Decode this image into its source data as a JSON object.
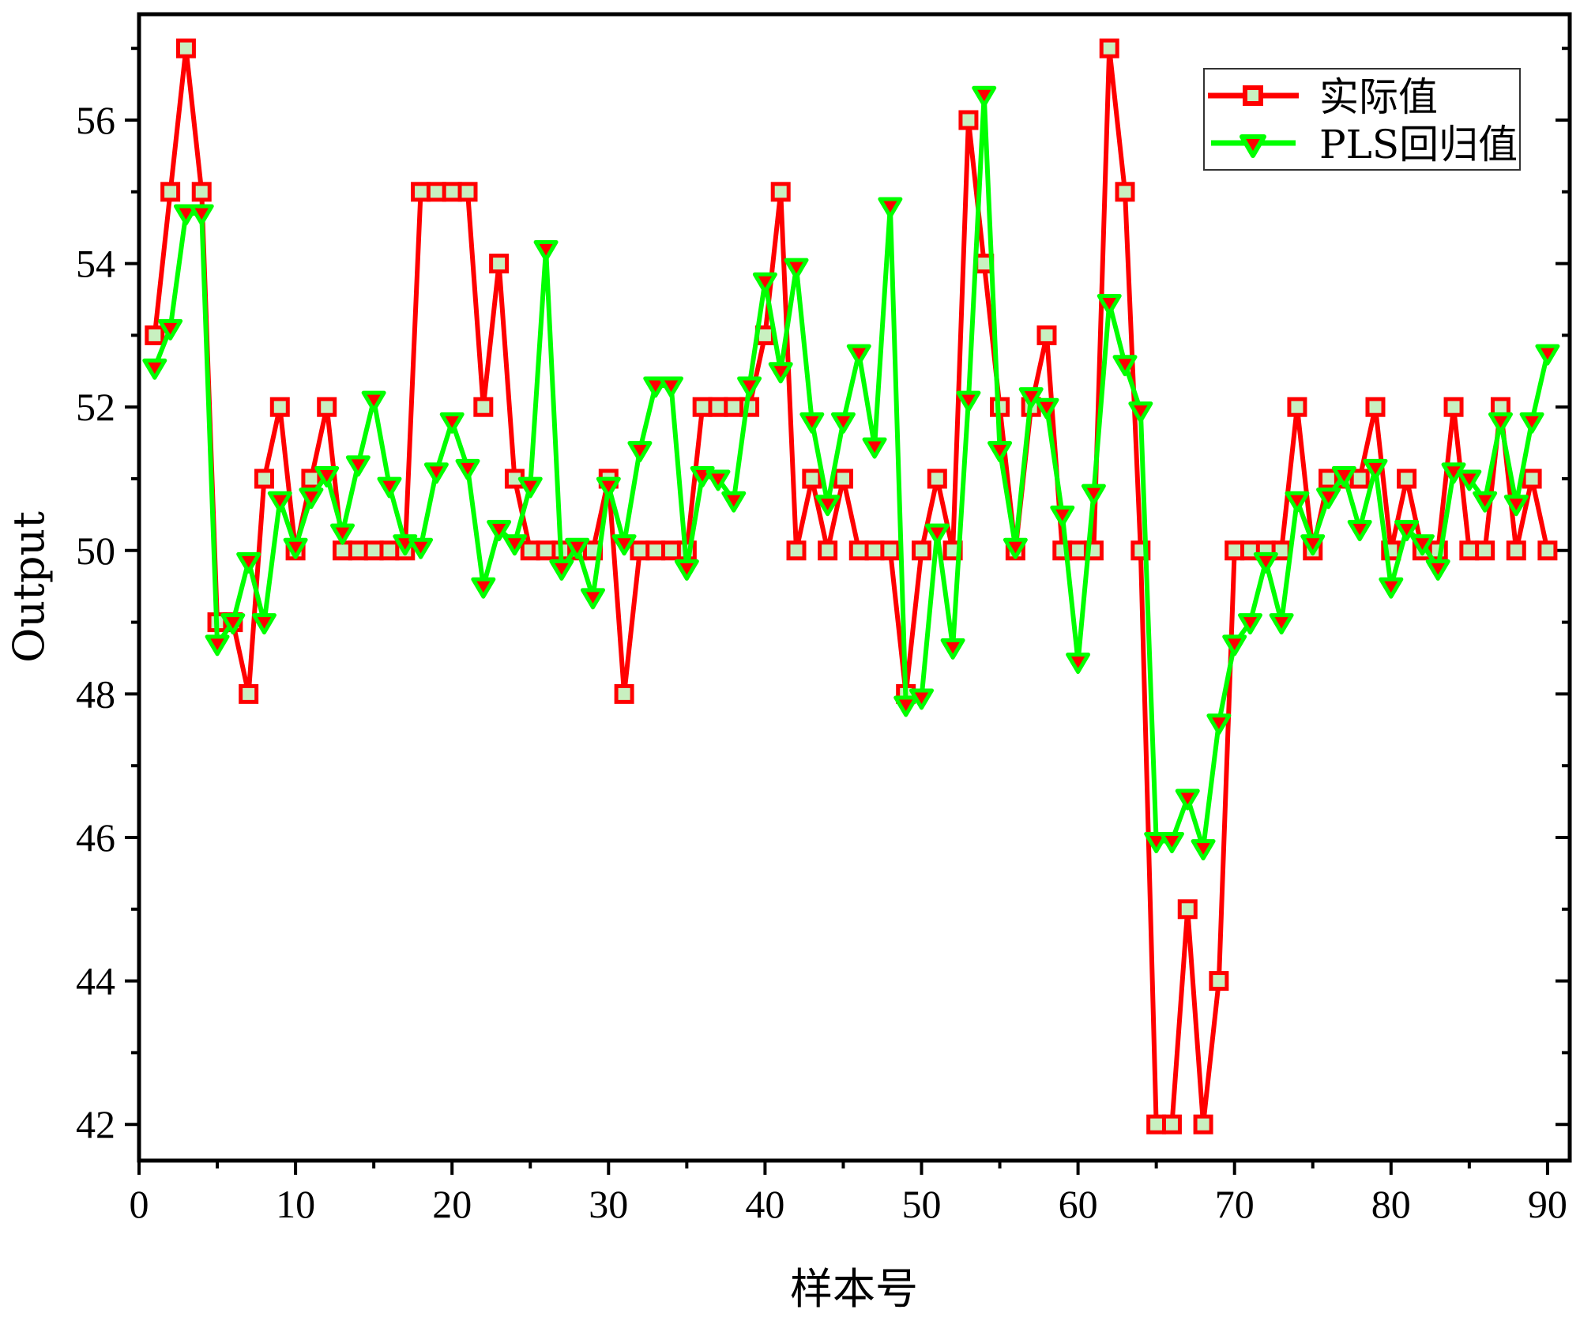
{
  "chart_data": {
    "type": "line",
    "title": "",
    "xlabel": "样本号",
    "ylabel": "Output",
    "xlim": [
      0,
      91
    ],
    "ylim": [
      41.5,
      57.5
    ],
    "xticks": [
      0,
      10,
      20,
      30,
      40,
      50,
      60,
      70,
      80,
      90
    ],
    "yticks": [
      42,
      44,
      46,
      48,
      50,
      52,
      54,
      56
    ],
    "grid": false,
    "legend_position": "top-right",
    "x": [
      1,
      2,
      3,
      4,
      5,
      6,
      7,
      8,
      9,
      10,
      11,
      12,
      13,
      14,
      15,
      16,
      17,
      18,
      19,
      20,
      21,
      22,
      23,
      24,
      25,
      26,
      27,
      28,
      29,
      30,
      31,
      32,
      33,
      34,
      35,
      36,
      37,
      38,
      39,
      40,
      41,
      42,
      43,
      44,
      45,
      46,
      47,
      48,
      49,
      50,
      51,
      52,
      53,
      54,
      55,
      56,
      57,
      58,
      59,
      60,
      61,
      62,
      63,
      64,
      65,
      66,
      67,
      68,
      69,
      70,
      71,
      72,
      73,
      74,
      75,
      76,
      77,
      78,
      79,
      80,
      81,
      82,
      83,
      84,
      85,
      86,
      87,
      88,
      89,
      90
    ],
    "series": [
      {
        "name": "实际值",
        "color": "#ff0000",
        "marker": "square",
        "marker_fill": "#c8f0c0",
        "values": [
          53,
          55,
          57,
          55,
          49,
          49,
          48,
          51,
          52,
          50,
          51,
          52,
          50,
          50,
          50,
          50,
          50,
          55,
          55,
          55,
          55,
          52,
          54,
          51,
          50,
          50,
          50,
          50,
          50,
          51,
          48,
          50,
          50,
          50,
          50,
          52,
          52,
          52,
          52,
          53,
          55,
          50,
          51,
          50,
          51,
          50,
          50,
          50,
          48,
          50,
          51,
          50,
          56,
          54,
          52,
          50,
          52,
          53,
          50,
          50,
          50,
          57,
          55,
          50,
          42,
          42,
          45,
          42,
          44,
          50,
          50,
          50,
          50,
          52,
          50,
          51,
          51,
          51,
          52,
          50,
          51,
          50,
          50,
          52,
          50,
          50,
          52,
          50,
          51,
          50
        ]
      },
      {
        "name": "PLS回归值",
        "color": "#00ff00",
        "marker": "triangle-down",
        "marker_fill": "#ff0000",
        "values": [
          52.55,
          53.1,
          54.7,
          54.7,
          48.7,
          49.0,
          49.85,
          49.0,
          50.7,
          50.05,
          50.75,
          51.05,
          50.25,
          51.2,
          52.1,
          50.9,
          50.1,
          50.05,
          51.1,
          51.8,
          51.15,
          49.5,
          50.3,
          50.1,
          50.9,
          54.2,
          49.75,
          50.05,
          49.35,
          50.9,
          50.1,
          51.4,
          52.3,
          52.3,
          49.75,
          51.05,
          51.0,
          50.7,
          52.3,
          53.75,
          52.5,
          53.95,
          51.8,
          50.65,
          51.8,
          52.75,
          51.45,
          54.8,
          47.85,
          47.95,
          50.25,
          48.65,
          52.1,
          56.35,
          51.4,
          50.05,
          52.15,
          52.0,
          50.5,
          48.45,
          50.8,
          53.45,
          52.6,
          51.95,
          45.95,
          45.95,
          46.55,
          45.85,
          47.6,
          48.7,
          49.0,
          49.85,
          49.0,
          50.7,
          50.1,
          50.75,
          51.05,
          50.3,
          51.15,
          49.5,
          50.3,
          50.1,
          49.75,
          51.1,
          51.0,
          50.7,
          51.8,
          50.65,
          51.8,
          52.75
        ]
      }
    ]
  }
}
